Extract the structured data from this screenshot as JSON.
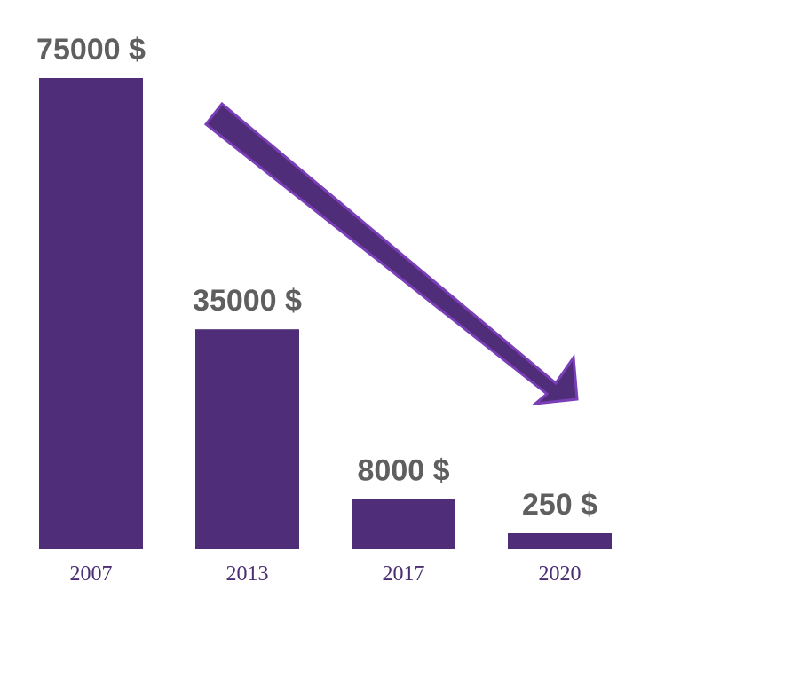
{
  "chart_data": {
    "type": "bar",
    "categories": [
      "2007",
      "2013",
      "2017",
      "2020"
    ],
    "values": [
      75000,
      35000,
      8000,
      250
    ],
    "value_labels": [
      "75000 $",
      "35000 $",
      "8000 $",
      "250 $"
    ],
    "title": "",
    "xlabel": "",
    "ylabel": "",
    "ylim": [
      0,
      75000
    ],
    "grid": false,
    "legend": "none",
    "annotation": "downward-trend-arrow",
    "colors": {
      "bar": "#502d78",
      "arrow_fill": "#502d78",
      "arrow_stroke": "#7a3fb8",
      "value_label": "#5f5f5f",
      "tick_label": "#4b2d73"
    }
  }
}
